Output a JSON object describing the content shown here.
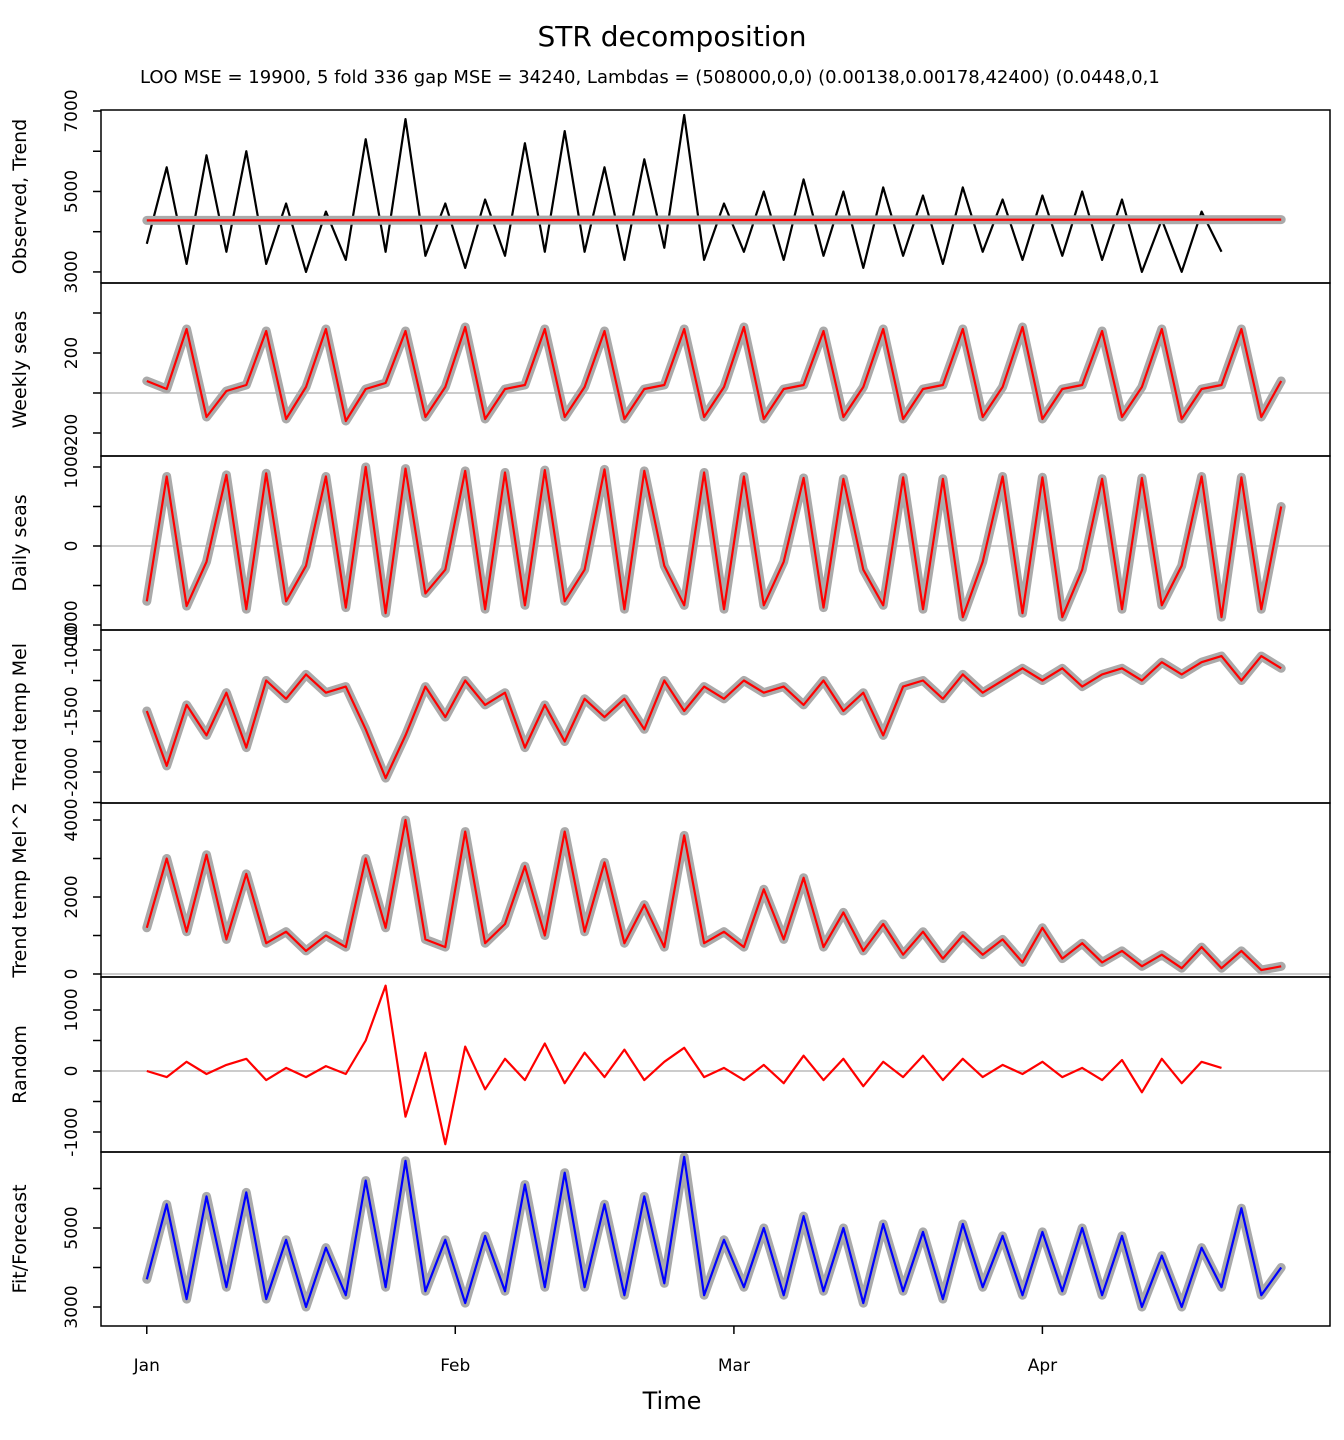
{
  "chart_data": [
    {
      "type": "line",
      "title": "STR decomposition",
      "subtitle": "LOO MSE = 19900, 5 fold 336 gap MSE = 34240, Lambdas = (508000,0,0) (0.00138,0.00178,42400) (0.0448,0,1",
      "ylabel": "Observed, Trend",
      "xlim": [
        -4.6,
        118.9
      ],
      "ylim": [
        2725,
        7025
      ],
      "yticks": [
        3000,
        5000,
        7000
      ],
      "yminorticks": [
        4000,
        6000
      ],
      "zero_line": false,
      "x": [
        0,
        2,
        4,
        6,
        8,
        10,
        12,
        14,
        16,
        18,
        20,
        22,
        24,
        26,
        28,
        30,
        32,
        34,
        36,
        38,
        40,
        42,
        44,
        46,
        48,
        50,
        52,
        54,
        56,
        58,
        60,
        62,
        64,
        66,
        68,
        70,
        72,
        74,
        76,
        78,
        80,
        82,
        84,
        86,
        88,
        90,
        92,
        94,
        96,
        98,
        100,
        102,
        104,
        106,
        108
      ],
      "series": [
        {
          "color": "#000000",
          "band": false,
          "values": [
            3700,
            5600,
            3200,
            5900,
            3500,
            6000,
            3200,
            4700,
            3000,
            4500,
            3300,
            6300,
            3500,
            6800,
            3400,
            4700,
            3100,
            4800,
            3400,
            6200,
            3500,
            6500,
            3500,
            5600,
            3300,
            5800,
            3600,
            6900,
            3300,
            4700,
            3500,
            5000,
            3300,
            5300,
            3400,
            5000,
            3100,
            5100,
            3400,
            4900,
            3200,
            5100,
            3500,
            4800,
            3300,
            4900,
            3400,
            5000,
            3300,
            4800,
            3000,
            4300,
            3000,
            4500,
            3500
          ]
        },
        {
          "color": "#ff0000",
          "band": true,
          "x": [
            0,
            114
          ],
          "values": [
            4280,
            4300
          ]
        }
      ]
    },
    {
      "type": "line",
      "ylabel": "Weekly seas",
      "xlim": [
        -4.6,
        118.9
      ],
      "ylim": [
        -315,
        550
      ],
      "yticks": [
        200,
        -200
      ],
      "yminorticks": [
        400,
        0
      ],
      "zero_line": true,
      "x": [
        0,
        2,
        4,
        6,
        8,
        10,
        12,
        14,
        16,
        18,
        20,
        22,
        24,
        26,
        28,
        30,
        32,
        34,
        36,
        38,
        40,
        42,
        44,
        46,
        48,
        50,
        52,
        54,
        56,
        58,
        60,
        62,
        64,
        66,
        68,
        70,
        72,
        74,
        76,
        78,
        80,
        82,
        84,
        86,
        88,
        90,
        92,
        94,
        96,
        98,
        100,
        102,
        104,
        106,
        108,
        110,
        112,
        114
      ],
      "series": [
        {
          "color": "#ff0000",
          "band": true,
          "values": [
            60,
            20,
            320,
            -120,
            10,
            40,
            310,
            -130,
            30,
            320,
            -140,
            20,
            50,
            310,
            -120,
            30,
            330,
            -130,
            20,
            40,
            320,
            -120,
            30,
            310,
            -130,
            20,
            40,
            320,
            -120,
            30,
            330,
            -130,
            20,
            40,
            310,
            -120,
            30,
            320,
            -130,
            20,
            40,
            320,
            -120,
            30,
            330,
            -130,
            20,
            40,
            310,
            -120,
            30,
            320,
            -130,
            20,
            40,
            320,
            -120,
            60
          ]
        }
      ]
    },
    {
      "type": "line",
      "ylabel": "Daily seas",
      "xlim": [
        -4.6,
        118.9
      ],
      "ylim": [
        -1063,
        1139
      ],
      "yticks": [
        1000,
        0,
        -1000
      ],
      "yminorticks": [
        500,
        -500
      ],
      "zero_line": true,
      "x": [
        0,
        2,
        4,
        6,
        8,
        10,
        12,
        14,
        16,
        18,
        20,
        22,
        24,
        26,
        28,
        30,
        32,
        34,
        36,
        38,
        40,
        42,
        44,
        46,
        48,
        50,
        52,
        54,
        56,
        58,
        60,
        62,
        64,
        66,
        68,
        70,
        72,
        74,
        76,
        78,
        80,
        82,
        84,
        86,
        88,
        90,
        92,
        94,
        96,
        98,
        100,
        102,
        104,
        106,
        108,
        110,
        112,
        114
      ],
      "series": [
        {
          "color": "#ff0000",
          "band": true,
          "values": [
            -700,
            880,
            -760,
            -200,
            900,
            -800,
            920,
            -700,
            -250,
            880,
            -780,
            1000,
            -850,
            980,
            -600,
            -300,
            950,
            -800,
            930,
            -750,
            960,
            -700,
            -300,
            970,
            -800,
            950,
            -250,
            -750,
            930,
            -800,
            880,
            -750,
            -200,
            860,
            -780,
            850,
            -300,
            -750,
            870,
            -800,
            850,
            -900,
            -200,
            880,
            -850,
            870,
            -900,
            -300,
            850,
            -800,
            860,
            -750,
            -250,
            880,
            -900,
            870,
            -800,
            500
          ]
        }
      ]
    },
    {
      "type": "line",
      "ylabel": "Trend temp Mel",
      "xlim": [
        -4.6,
        118.9
      ],
      "ylim": [
        -2254,
        -836
      ],
      "yticks": [
        -1000,
        -1500,
        -2000
      ],
      "yminorticks": [
        -1250,
        -1750,
        -2250
      ],
      "zero_line": false,
      "x": [
        0,
        2,
        4,
        6,
        8,
        10,
        12,
        14,
        16,
        18,
        20,
        22,
        24,
        26,
        28,
        30,
        32,
        34,
        36,
        38,
        40,
        42,
        44,
        46,
        48,
        50,
        52,
        54,
        56,
        58,
        60,
        62,
        64,
        66,
        68,
        70,
        72,
        74,
        76,
        78,
        80,
        82,
        84,
        86,
        88,
        90,
        92,
        94,
        96,
        98,
        100,
        102,
        104,
        106,
        108,
        110,
        112,
        114
      ],
      "series": [
        {
          "color": "#ff0000",
          "band": true,
          "values": [
            -1500,
            -1950,
            -1450,
            -1700,
            -1350,
            -1800,
            -1250,
            -1400,
            -1200,
            -1350,
            -1300,
            -1650,
            -2050,
            -1700,
            -1300,
            -1550,
            -1250,
            -1450,
            -1350,
            -1800,
            -1450,
            -1750,
            -1400,
            -1550,
            -1400,
            -1650,
            -1250,
            -1500,
            -1300,
            -1400,
            -1250,
            -1350,
            -1300,
            -1450,
            -1250,
            -1500,
            -1350,
            -1700,
            -1300,
            -1250,
            -1400,
            -1200,
            -1350,
            -1250,
            -1150,
            -1250,
            -1150,
            -1300,
            -1200,
            -1150,
            -1250,
            -1100,
            -1200,
            -1100,
            -1050,
            -1250,
            -1050,
            -1150
          ]
        }
      ]
    },
    {
      "type": "line",
      "ylabel": "Trend temp Mel^2",
      "xlim": [
        -4.6,
        118.9
      ],
      "ylim": [
        -78,
        4442
      ],
      "yticks": [
        0,
        2000,
        4000
      ],
      "yminorticks": [
        1000,
        3000
      ],
      "zero_line": true,
      "x": [
        0,
        2,
        4,
        6,
        8,
        10,
        12,
        14,
        16,
        18,
        20,
        22,
        24,
        26,
        28,
        30,
        32,
        34,
        36,
        38,
        40,
        42,
        44,
        46,
        48,
        50,
        52,
        54,
        56,
        58,
        60,
        62,
        64,
        66,
        68,
        70,
        72,
        74,
        76,
        78,
        80,
        82,
        84,
        86,
        88,
        90,
        92,
        94,
        96,
        98,
        100,
        102,
        104,
        106,
        108,
        110,
        112,
        114
      ],
      "series": [
        {
          "color": "#ff0000",
          "band": true,
          "values": [
            1200,
            3000,
            1100,
            3100,
            900,
            2600,
            800,
            1100,
            600,
            1000,
            700,
            3000,
            1200,
            4000,
            900,
            700,
            3700,
            800,
            1300,
            2800,
            1000,
            3700,
            1100,
            2900,
            800,
            1800,
            700,
            3600,
            800,
            1100,
            700,
            2200,
            900,
            2500,
            700,
            1600,
            600,
            1300,
            500,
            1100,
            400,
            1000,
            500,
            900,
            300,
            1200,
            400,
            800,
            300,
            600,
            200,
            500,
            150,
            700,
            150,
            600,
            100,
            200
          ]
        }
      ]
    },
    {
      "type": "line",
      "ylabel": "Random",
      "xlim": [
        -4.6,
        118.9
      ],
      "ylim": [
        -1328,
        1541
      ],
      "yticks": [
        1000,
        0,
        -1000
      ],
      "yminorticks": [
        500,
        -500
      ],
      "zero_line": true,
      "x": [
        0,
        2,
        4,
        6,
        8,
        10,
        12,
        14,
        16,
        18,
        20,
        22,
        24,
        26,
        28,
        30,
        32,
        34,
        36,
        38,
        40,
        42,
        44,
        46,
        48,
        50,
        52,
        54,
        56,
        58,
        60,
        62,
        64,
        66,
        68,
        70,
        72,
        74,
        76,
        78,
        80,
        82,
        84,
        86,
        88,
        90,
        92,
        94,
        96,
        98,
        100,
        102,
        104,
        106,
        108
      ],
      "series": [
        {
          "color": "#ff0000",
          "band": false,
          "values": [
            0,
            -100,
            150,
            -50,
            100,
            200,
            -150,
            50,
            -100,
            80,
            -50,
            500,
            1400,
            -750,
            300,
            -1200,
            400,
            -300,
            200,
            -150,
            450,
            -200,
            300,
            -100,
            350,
            -150,
            150,
            380,
            -100,
            50,
            -150,
            100,
            -200,
            250,
            -150,
            200,
            -250,
            150,
            -100,
            250,
            -150,
            200,
            -100,
            100,
            -50,
            150,
            -100,
            50,
            -150,
            180,
            -350,
            200,
            -200,
            150,
            50
          ]
        }
      ]
    },
    {
      "type": "line",
      "ylabel": "Fit/Forecast",
      "xlabel": "Time",
      "xlim": [
        -4.6,
        118.9
      ],
      "ylim": [
        2519,
        6924
      ],
      "yticks": [
        3000,
        5000
      ],
      "yminorticks": [
        4000,
        6000
      ],
      "zero_line": false,
      "xticks": [
        {
          "value": 0,
          "label": "Jan"
        },
        {
          "value": 31,
          "label": "Feb"
        },
        {
          "value": 59,
          "label": "Mar"
        },
        {
          "value": 90,
          "label": "Apr"
        }
      ],
      "x": [
        0,
        2,
        4,
        6,
        8,
        10,
        12,
        14,
        16,
        18,
        20,
        22,
        24,
        26,
        28,
        30,
        32,
        34,
        36,
        38,
        40,
        42,
        44,
        46,
        48,
        50,
        52,
        54,
        56,
        58,
        60,
        62,
        64,
        66,
        68,
        70,
        72,
        74,
        76,
        78,
        80,
        82,
        84,
        86,
        88,
        90,
        92,
        94,
        96,
        98,
        100,
        102,
        104,
        106,
        108,
        110,
        112,
        114
      ],
      "series": [
        {
          "color": "#0000ff",
          "band": true,
          "values": [
            3700,
            5600,
            3200,
            5800,
            3500,
            5900,
            3200,
            4700,
            3000,
            4500,
            3300,
            6200,
            3500,
            6700,
            3400,
            4700,
            3100,
            4800,
            3400,
            6100,
            3500,
            6400,
            3500,
            5600,
            3300,
            5800,
            3600,
            6800,
            3300,
            4700,
            3500,
            5000,
            3300,
            5300,
            3400,
            5000,
            3100,
            5100,
            3400,
            4900,
            3200,
            5100,
            3500,
            4800,
            3300,
            4900,
            3400,
            5000,
            3300,
            4800,
            3000,
            4300,
            3000,
            4500,
            3500,
            5500,
            3300,
            4000
          ]
        }
      ]
    }
  ]
}
